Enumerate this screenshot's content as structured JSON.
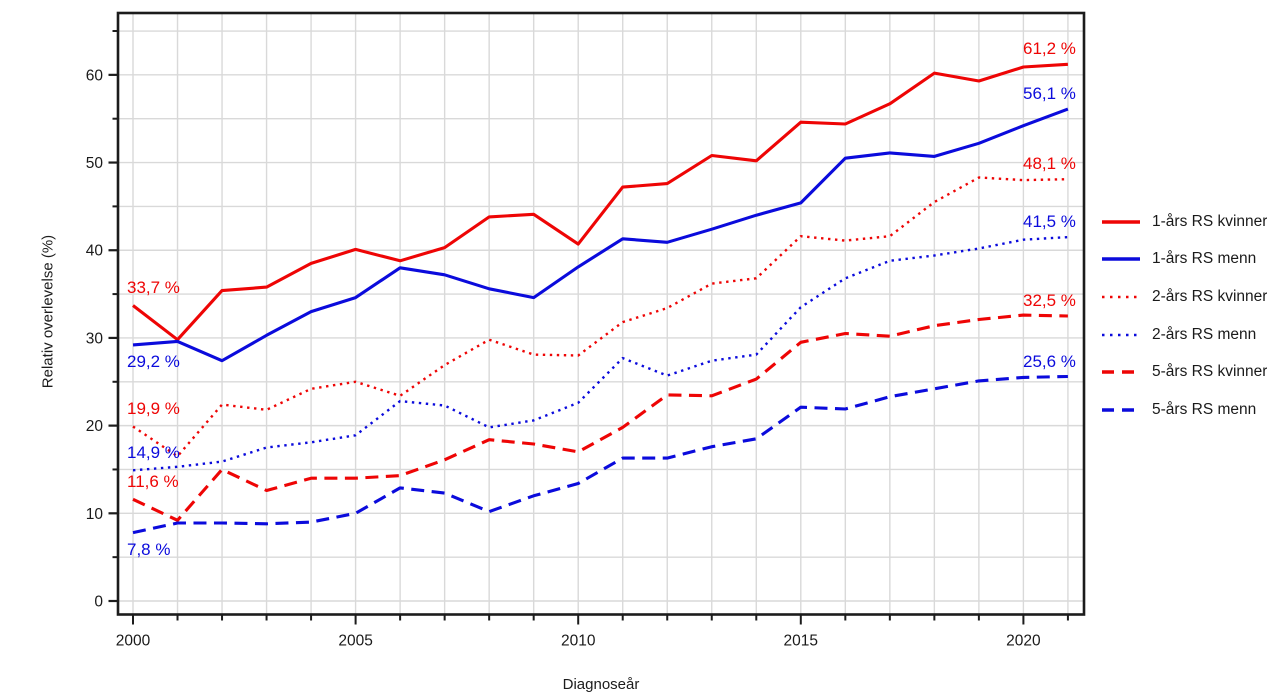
{
  "page": {
    "background": "#ffffff"
  },
  "colors": {
    "red": "#ee0505",
    "blue": "#0b0bdc",
    "grid": "#d9d9d9",
    "axis": "#1c1c1c",
    "tick_text": "#1a1a1a"
  },
  "chart_data": {
    "type": "line",
    "title": "",
    "xlabel": "Diagnoseår",
    "ylabel": "Relativ overlevelse (%)",
    "xlim": [
      2000,
      2021
    ],
    "ylim": [
      0,
      65
    ],
    "x_ticks": [
      2000,
      2005,
      2010,
      2015,
      2020
    ],
    "x_minor_step": 1,
    "y_ticks": [
      0,
      10,
      20,
      30,
      40,
      50,
      60
    ],
    "y_minor_step": 5,
    "grid": true,
    "legend_position": "right",
    "years": [
      2000,
      2001,
      2002,
      2003,
      2004,
      2005,
      2006,
      2007,
      2008,
      2009,
      2010,
      2011,
      2012,
      2013,
      2014,
      2015,
      2016,
      2017,
      2018,
      2019,
      2020,
      2021
    ],
    "series": [
      {
        "name": "1-års RS kvinner",
        "color_key": "red",
        "dash": "solid",
        "values": [
          33.7,
          29.8,
          35.4,
          35.8,
          38.5,
          40.1,
          38.8,
          40.3,
          43.8,
          44.1,
          40.7,
          47.2,
          47.6,
          50.8,
          50.2,
          54.6,
          54.4,
          56.7,
          60.2,
          59.3,
          60.9,
          61.2
        ],
        "start_label": {
          "text": "33,7 %",
          "side": "above"
        },
        "end_label": {
          "text": "61,2 %"
        }
      },
      {
        "name": "1-års RS menn",
        "color_key": "blue",
        "dash": "solid",
        "values": [
          29.2,
          29.6,
          27.4,
          30.3,
          33.0,
          34.6,
          38.0,
          37.2,
          35.6,
          34.6,
          38.1,
          41.3,
          40.9,
          42.4,
          44.0,
          45.4,
          50.5,
          51.1,
          50.7,
          52.2,
          54.2,
          56.1
        ],
        "start_label": {
          "text": "29,2 %",
          "side": "below"
        },
        "end_label": {
          "text": "56,1 %"
        }
      },
      {
        "name": "2-års RS kvinner",
        "color_key": "red",
        "dash": "dotted",
        "values": [
          19.9,
          16.5,
          22.4,
          21.8,
          24.2,
          25.0,
          23.4,
          26.9,
          29.8,
          28.1,
          28.0,
          31.8,
          33.4,
          36.2,
          36.8,
          41.6,
          41.1,
          41.6,
          45.5,
          48.3,
          48.0,
          48.1
        ],
        "start_label": {
          "text": "19,9 %",
          "side": "above"
        },
        "end_label": {
          "text": "48,1 %"
        }
      },
      {
        "name": "2-års RS menn",
        "color_key": "blue",
        "dash": "dotted",
        "values": [
          14.9,
          15.3,
          15.9,
          17.5,
          18.1,
          18.9,
          22.8,
          22.3,
          19.8,
          20.6,
          22.6,
          27.7,
          25.7,
          27.4,
          28.1,
          33.5,
          36.8,
          38.8,
          39.4,
          40.2,
          41.2,
          41.5
        ],
        "start_label": {
          "text": "14,9 %",
          "side": "above"
        },
        "end_label": {
          "text": "41,5 %"
        }
      },
      {
        "name": "5-års RS kvinner",
        "color_key": "red",
        "dash": "dashed",
        "values": [
          11.6,
          9.2,
          15.0,
          12.6,
          14.0,
          14.0,
          14.3,
          16.1,
          18.4,
          17.9,
          17.0,
          19.8,
          23.5,
          23.4,
          25.3,
          29.5,
          30.5,
          30.2,
          31.4,
          32.1,
          32.6,
          32.5
        ],
        "start_label": {
          "text": "11,6 %",
          "side": "above"
        },
        "end_label": {
          "text": "32,5 %"
        }
      },
      {
        "name": "5-års RS menn",
        "color_key": "blue",
        "dash": "dashed",
        "values": [
          7.8,
          8.9,
          8.9,
          8.8,
          9.0,
          10.0,
          12.9,
          12.3,
          10.2,
          12.0,
          13.4,
          16.3,
          16.3,
          17.6,
          18.5,
          22.1,
          21.9,
          23.3,
          24.2,
          25.1,
          25.5,
          25.6
        ],
        "start_label": {
          "text": "7,8 %",
          "side": "below"
        },
        "end_label": {
          "text": "25,6 %"
        }
      }
    ]
  }
}
